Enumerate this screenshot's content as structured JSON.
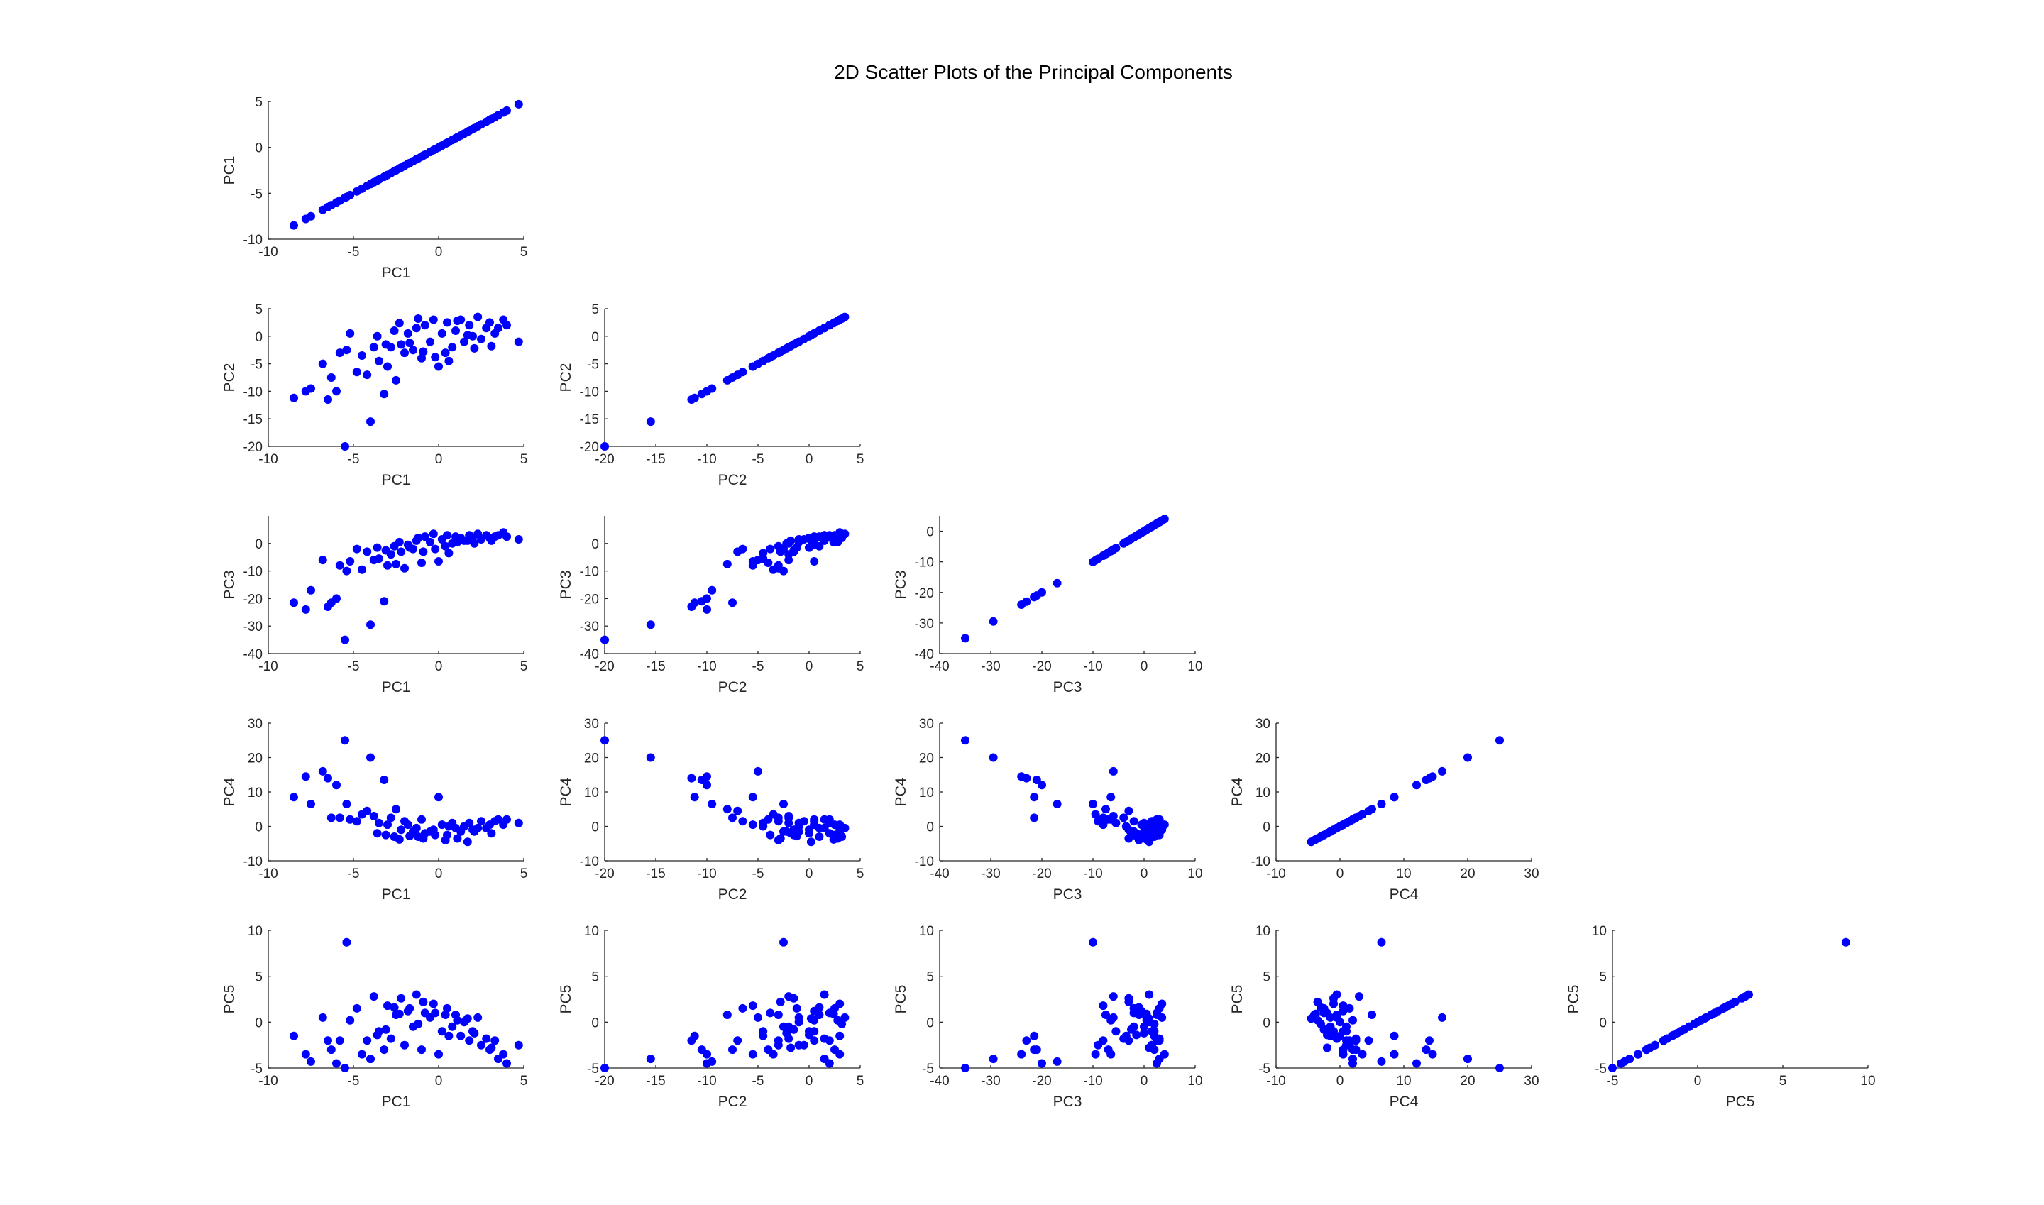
{
  "title": "2D Scatter Plots of the Principal Components",
  "marker_color": "#0000ff",
  "axis_color": "#262626",
  "chart_data": {
    "type": "scatter",
    "layout": "lower-triangular scatter matrix (row i: y = PCi, column j: x = PCj, j <= i)",
    "title": "2D Scatter Plots of the Principal Components",
    "components": [
      "PC1",
      "PC2",
      "PC3",
      "PC4",
      "PC5"
    ],
    "grid": false,
    "axis_ranges": {
      "PC1": [
        -10,
        5
      ],
      "PC2": [
        -20,
        5
      ],
      "PC3": [
        -40,
        10
      ],
      "PC4": [
        -10,
        30
      ],
      "PC5": [
        -5,
        10
      ]
    },
    "diagonal_x_ranges": {
      "PC1": [
        -10,
        5
      ],
      "PC2": [
        -20,
        5
      ],
      "PC3": [
        -40,
        10
      ],
      "PC4": [
        -10,
        30
      ],
      "PC5": [
        -5,
        10
      ]
    },
    "diagonal_y_ranges": {
      "PC1": [
        -10,
        5
      ],
      "PC2": [
        -20,
        5
      ],
      "PC3": [
        -40,
        5
      ],
      "PC4": [
        -10,
        30
      ],
      "PC5": [
        -5,
        10
      ]
    },
    "ticks": {
      "PC1": [
        -10,
        -5,
        0,
        5
      ],
      "PC2": [
        -20,
        -15,
        -10,
        -5,
        0,
        5
      ],
      "PC3": [
        -40,
        -30,
        -20,
        -10,
        0,
        10
      ],
      "PC3_y": [
        -40,
        -30,
        -20,
        -10,
        0
      ],
      "PC4": [
        -10,
        0,
        10,
        20,
        30
      ],
      "PC5": [
        -5,
        0,
        5,
        10
      ]
    },
    "samples": [
      [
        -8.5,
        -11.2,
        -21.5,
        8.5,
        -1.5
      ],
      [
        -7.8,
        -10.0,
        -24.0,
        14.5,
        -3.5
      ],
      [
        -7.5,
        -9.5,
        -17.0,
        6.5,
        -4.3
      ],
      [
        -6.8,
        -5.0,
        -6.0,
        16.0,
        0.5
      ],
      [
        -6.5,
        -11.5,
        -23.0,
        14.0,
        -2.0
      ],
      [
        -6.3,
        -7.5,
        -21.5,
        2.5,
        -3.0
      ],
      [
        -6.0,
        -10.0,
        -20.0,
        12.0,
        -4.5
      ],
      [
        -5.8,
        -3.0,
        -8.0,
        2.5,
        -2.0
      ],
      [
        -5.5,
        -20.0,
        -35.0,
        25.0,
        -5.0
      ],
      [
        -5.4,
        -2.5,
        -10.0,
        6.5,
        8.7
      ],
      [
        -5.2,
        0.5,
        -6.5,
        2.0,
        0.2
      ],
      [
        -4.8,
        -6.5,
        -2.0,
        1.5,
        1.5
      ],
      [
        -4.5,
        -3.5,
        -9.5,
        3.5,
        -3.5
      ],
      [
        -4.2,
        -7.0,
        -3.0,
        4.5,
        -2.0
      ],
      [
        -4.0,
        -15.5,
        -29.5,
        20.0,
        -4.0
      ],
      [
        -3.8,
        -2.0,
        -6.0,
        3.0,
        2.8
      ],
      [
        -3.5,
        -4.5,
        -5.5,
        1.0,
        -1.0
      ],
      [
        -3.2,
        -10.5,
        -21.0,
        13.5,
        -3.0
      ],
      [
        -3.0,
        -5.5,
        -8.0,
        0.5,
        1.8
      ],
      [
        -2.8,
        -2.0,
        -4.0,
        2.5,
        -1.8
      ],
      [
        -2.5,
        -8.0,
        -7.5,
        5.0,
        0.8
      ],
      [
        -2.2,
        -1.5,
        -3.0,
        -1.0,
        2.6
      ],
      [
        -2.0,
        -3.0,
        -9.0,
        1.5,
        -2.5
      ],
      [
        -1.8,
        0.5,
        -0.5,
        0.5,
        1.2
      ],
      [
        -1.5,
        -2.5,
        -2.0,
        -1.5,
        -0.5
      ],
      [
        -1.3,
        1.5,
        1.0,
        -0.5,
        3.0
      ],
      [
        -1.0,
        -4.0,
        -7.0,
        2.0,
        -3.0
      ],
      [
        -0.8,
        2.0,
        2.5,
        -2.0,
        1.0
      ],
      [
        -0.5,
        -1.0,
        0.5,
        -1.5,
        0.5
      ],
      [
        -0.3,
        3.0,
        3.5,
        -1.0,
        2.0
      ],
      [
        0.0,
        -5.5,
        -6.5,
        8.5,
        -3.5
      ],
      [
        0.2,
        0.5,
        1.5,
        0.5,
        -1.0
      ],
      [
        0.5,
        2.5,
        3.0,
        -2.5,
        1.5
      ],
      [
        0.8,
        -2.0,
        0.0,
        1.0,
        -0.5
      ],
      [
        1.0,
        1.0,
        2.5,
        -0.5,
        0.8
      ],
      [
        1.3,
        3.0,
        2.0,
        -1.5,
        -1.5
      ],
      [
        1.5,
        -1.0,
        1.0,
        0.0,
        0.0
      ],
      [
        1.8,
        2.0,
        3.0,
        1.0,
        -2.0
      ],
      [
        2.0,
        0.0,
        2.0,
        -1.0,
        -1.0
      ],
      [
        2.3,
        3.5,
        3.5,
        -0.5,
        0.5
      ],
      [
        2.5,
        -0.5,
        1.5,
        1.5,
        -2.5
      ],
      [
        2.8,
        1.5,
        3.0,
        -0.5,
        -1.8
      ],
      [
        3.0,
        2.5,
        2.0,
        0.5,
        -3.0
      ],
      [
        3.3,
        0.5,
        2.5,
        1.5,
        -2.0
      ],
      [
        3.5,
        1.5,
        3.0,
        2.0,
        -4.0
      ],
      [
        3.8,
        3.0,
        4.0,
        0.5,
        -3.5
      ],
      [
        4.0,
        2.0,
        2.5,
        2.0,
        -4.5
      ],
      [
        4.7,
        -1.0,
        1.5,
        1.0,
        -2.5
      ],
      [
        -1.7,
        -1.2,
        -1.5,
        -2.8,
        1.5
      ],
      [
        -0.9,
        -2.8,
        -3.0,
        -3.5,
        2.2
      ],
      [
        0.4,
        -3.0,
        -1.0,
        -4.0,
        0.8
      ],
      [
        -2.6,
        1.0,
        -1.0,
        -3.0,
        1.6
      ],
      [
        1.1,
        2.8,
        0.5,
        -3.5,
        0.2
      ],
      [
        -3.1,
        -1.5,
        -2.5,
        -2.5,
        -0.8
      ],
      [
        -1.2,
        3.2,
        2.0,
        -3.0,
        -0.2
      ],
      [
        0.6,
        -4.5,
        -3.5,
        0.0,
        -1.5
      ],
      [
        2.1,
        -2.2,
        0.0,
        -1.5,
        -1.2
      ],
      [
        -3.6,
        0.0,
        -1.5,
        -2.0,
        -1.4
      ],
      [
        -0.2,
        -3.8,
        -2.0,
        -2.5,
        1.0
      ],
      [
        1.7,
        0.2,
        1.0,
        -4.5,
        0.4
      ],
      [
        -2.3,
        2.4,
        0.5,
        -3.8,
        0.9
      ],
      [
        3.1,
        -1.8,
        1.0,
        -2.0,
        -2.8
      ]
    ]
  }
}
